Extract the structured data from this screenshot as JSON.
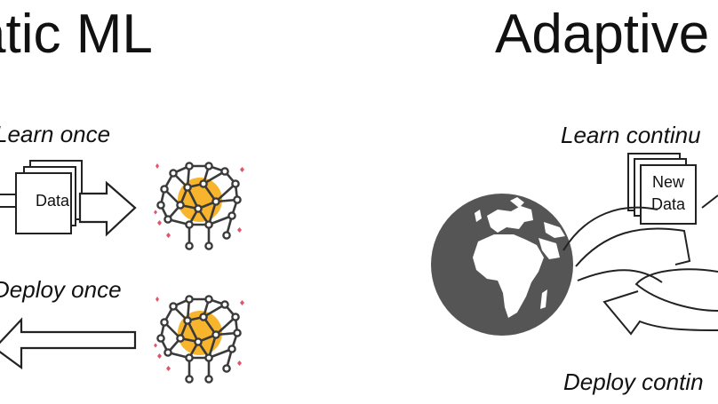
{
  "titles": {
    "left": "atic ML",
    "right": "Adaptive"
  },
  "labels": {
    "learn_once": "Learn once",
    "deploy_once": "Deploy once",
    "learn_continuously": "Learn continu",
    "deploy_continuously": "Deploy contin"
  },
  "documents": {
    "data": "Data",
    "new_data_line1": "New",
    "new_data_line2": "Data"
  },
  "icons": {
    "brain": "neural-network-brain-icon",
    "globe": "globe-africa-europe-icon"
  },
  "colors": {
    "brain_accent": "#f7b42c",
    "sparkle": "#e05565",
    "globe": "#555555"
  }
}
